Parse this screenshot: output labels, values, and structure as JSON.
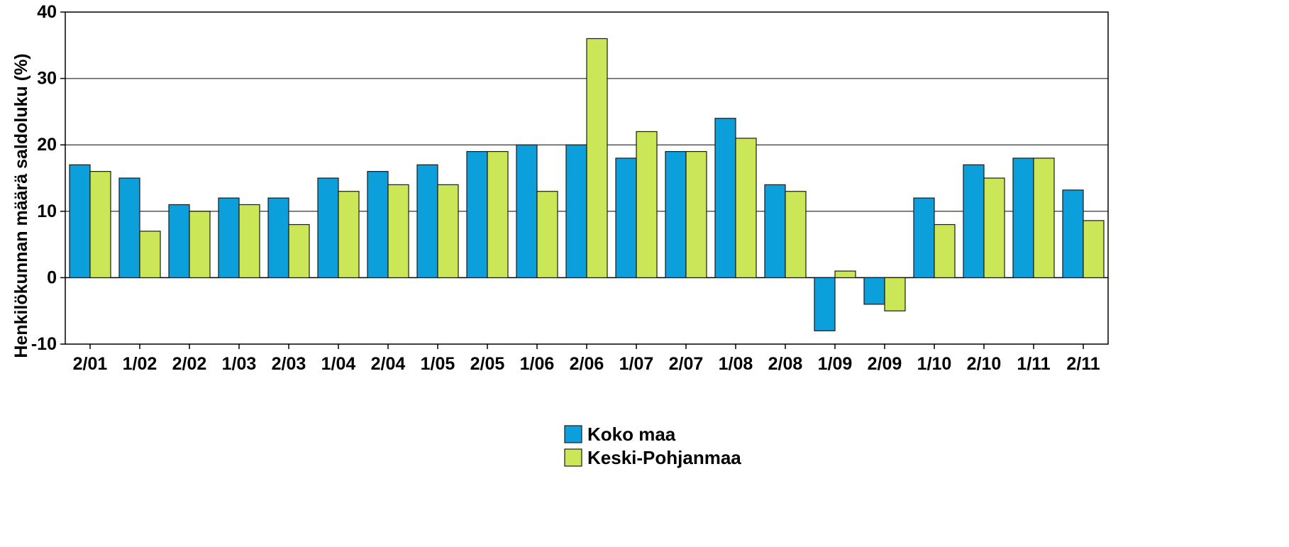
{
  "chart_data": {
    "type": "bar",
    "title": "",
    "xlabel": "",
    "ylabel": "Henkilökunnan määrä saldoluku (%)",
    "ylim": [
      -10,
      40
    ],
    "yticks": [
      -10,
      0,
      10,
      20,
      30,
      40
    ],
    "grid": "horizontal",
    "legend_position": "bottom-center",
    "categories": [
      "2/01",
      "1/02",
      "2/02",
      "1/03",
      "2/03",
      "1/04",
      "2/04",
      "1/05",
      "2/05",
      "1/06",
      "2/06",
      "1/07",
      "2/07",
      "1/08",
      "2/08",
      "1/09",
      "2/09",
      "1/10",
      "2/10",
      "1/11",
      "2/11"
    ],
    "series": [
      {
        "name": "Koko maa",
        "color": "#0b9fdb",
        "values": [
          17,
          15,
          11,
          12,
          12,
          15,
          16,
          17,
          19,
          20,
          20,
          18,
          19,
          24,
          14,
          -8,
          -4,
          12,
          17,
          18,
          13.2
        ]
      },
      {
        "name": "Keski-Pohjanmaa",
        "color": "#cbe657",
        "values": [
          16,
          7,
          10,
          11,
          8,
          13,
          14,
          14,
          19,
          13,
          36,
          22,
          19,
          21,
          13,
          1,
          -5,
          8,
          15,
          18,
          8.6
        ]
      }
    ]
  }
}
